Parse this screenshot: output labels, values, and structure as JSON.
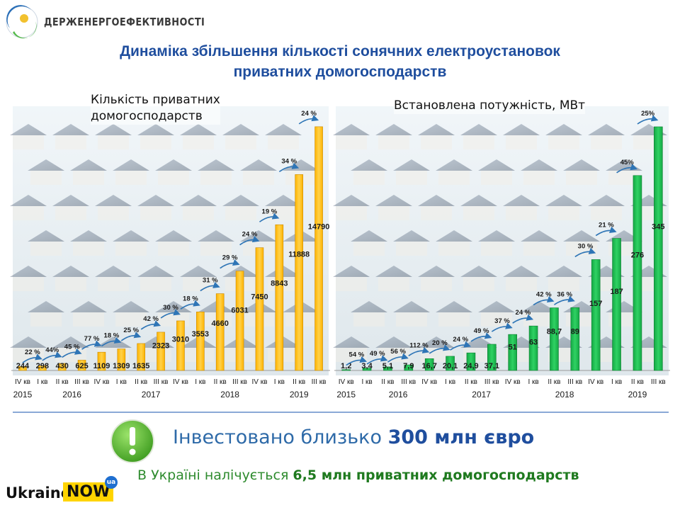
{
  "header": {
    "org_name": "ДЕРЖЕНЕРГОЕФЕКТИВНОСТІ",
    "title_line1": "Динаміка збільшення кількості сонячних електроустановок",
    "title_line2": "приватних домогосподарств"
  },
  "colors": {
    "title": "#1f4e9e",
    "left_bars": "#ffc000",
    "right_bars": "#1fbf4f",
    "growth_arrow": "#2e75b6",
    "divider": "#8aa9d6",
    "invest_text": "#2e6aa8",
    "households_text": "#2e8b2e"
  },
  "chart_data": [
    {
      "type": "bar",
      "title": "Кількість приватних домогосподарств",
      "title_lines": [
        "Кількість приватних",
        "домогосподарств"
      ],
      "categories": [
        "IV кв",
        "I кв",
        "II кв",
        "III кв",
        "IV кв",
        "I кв",
        "II кв",
        "III кв",
        "IV кв",
        "I кв",
        "II кв",
        "III кв",
        "IV кв",
        "I кв",
        "II кв",
        "III кв"
      ],
      "years": [
        {
          "label": "2015",
          "from": 0,
          "to": 0
        },
        {
          "label": "2016",
          "from": 1,
          "to": 4
        },
        {
          "label": "2017",
          "from": 5,
          "to": 8
        },
        {
          "label": "2018",
          "from": 9,
          "to": 12
        },
        {
          "label": "2019",
          "from": 13,
          "to": 15
        }
      ],
      "values": [
        244,
        298,
        430,
        625,
        1109,
        1309,
        1635,
        2323,
        3010,
        3553,
        4660,
        6031,
        7450,
        8843,
        11888,
        14790
      ],
      "value_labels": [
        "244",
        "298",
        "430",
        "625",
        "1109",
        "1309",
        "1635",
        "2323",
        "3010",
        "3553",
        "4660",
        "6031",
        "7450",
        "8843",
        "11888",
        "14790"
      ],
      "growth_labels": [
        "22 %",
        "44%",
        "45 %",
        "77 %",
        "18 %",
        "25 %",
        "42 %",
        "30 %",
        "18 %",
        "31 %",
        "29 %",
        "24 %",
        "19 %",
        "34 %",
        "24 %"
      ],
      "ylim": [
        0,
        15000
      ],
      "grid": false,
      "legend": "none"
    },
    {
      "type": "bar",
      "title": "Встановлена потужність, МВт",
      "title_lines": [
        "Встановлена потужність, МВт"
      ],
      "categories": [
        "IV кв",
        "I кв",
        "II кв",
        "III кв",
        "IV кв",
        "I кв",
        "II кв",
        "III кв",
        "IV кв",
        "I кв",
        "II кв",
        "III кв",
        "IV кв",
        "I кв",
        "II кв",
        "III кв"
      ],
      "years": [
        {
          "label": "2015",
          "from": 0,
          "to": 0
        },
        {
          "label": "2016",
          "from": 1,
          "to": 4
        },
        {
          "label": "2017",
          "from": 5,
          "to": 8
        },
        {
          "label": "2018",
          "from": 9,
          "to": 12
        },
        {
          "label": "2019",
          "from": 13,
          "to": 15
        }
      ],
      "values": [
        1.2,
        3.4,
        5.1,
        7.9,
        16.7,
        20.1,
        24.9,
        37.1,
        51,
        63,
        88.7,
        89,
        157,
        187,
        276,
        345
      ],
      "value_labels": [
        "1,2",
        "3,4",
        "5,1",
        "7,9",
        "16,7",
        "20,1",
        "24,9",
        "37,1",
        "51",
        "63",
        "88,7",
        "89",
        "157",
        "187",
        "276",
        "345"
      ],
      "growth_labels": [
        "54 %",
        "49 %",
        "56 %",
        "112 %",
        "20 %",
        "24 %",
        "49 %",
        "37 %",
        "24 %",
        "42 %",
        "36 %",
        "30 %",
        "21 %",
        "45%",
        "25%"
      ],
      "ylim": [
        0,
        350
      ],
      "grid": false,
      "legend": "none"
    }
  ],
  "bottom": {
    "invest_prefix": "Інвестовано близько ",
    "invest_bold": "300 млн євро",
    "households_prefix": "В Україні налічується ",
    "households_bold": "6,5 млн приватних домогосподарств"
  },
  "logo": {
    "ukraine": "Ukraine",
    "now": "NOW",
    "ua": "ua"
  }
}
